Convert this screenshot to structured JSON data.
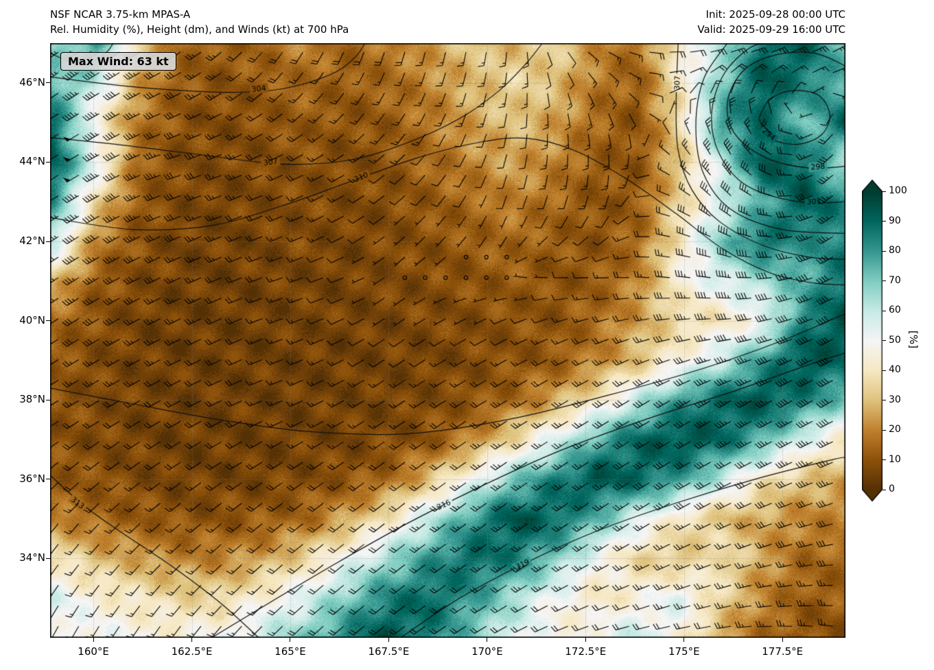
{
  "header": {
    "title_line1": "NSF NCAR 3.75-km MPAS-A",
    "title_line2": "Rel. Humidity (%), Height (dm), and Winds (kt) at 700 hPa",
    "init_label": "Init: 2025-09-28 00:00 UTC",
    "valid_label": "Valid: 2025-09-29 16:00 UTC"
  },
  "map": {
    "max_wind_label": "Max Wind: 63 kt"
  },
  "axes": {
    "lat_ticks": [
      {
        "label": "46°N",
        "value": 46
      },
      {
        "label": "44°N",
        "value": 44
      },
      {
        "label": "42°N",
        "value": 42
      },
      {
        "label": "40°N",
        "value": 40
      },
      {
        "label": "38°N",
        "value": 38
      },
      {
        "label": "36°N",
        "value": 36
      },
      {
        "label": "34°N",
        "value": 34
      }
    ],
    "lon_ticks": [
      {
        "label": "160°E",
        "value": 160
      },
      {
        "label": "162.5°E",
        "value": 162.5
      },
      {
        "label": "165°E",
        "value": 165
      },
      {
        "label": "167.5°E",
        "value": 167.5
      },
      {
        "label": "170°E",
        "value": 170
      },
      {
        "label": "172.5°E",
        "value": 172.5
      },
      {
        "label": "175°E",
        "value": 175
      },
      {
        "label": "177.5°E",
        "value": 177.5
      }
    ]
  },
  "colorbar": {
    "label": "[%]",
    "ticks": [
      0,
      10,
      20,
      30,
      40,
      50,
      60,
      70,
      80,
      90,
      100
    ],
    "stops": [
      {
        "v": 0,
        "c": "#543005"
      },
      {
        "v": 10,
        "c": "#8c510a"
      },
      {
        "v": 20,
        "c": "#bf812d"
      },
      {
        "v": 30,
        "c": "#dfc27d"
      },
      {
        "v": 40,
        "c": "#f6e8c3"
      },
      {
        "v": 50,
        "c": "#f5f5f5"
      },
      {
        "v": 60,
        "c": "#c7eae5"
      },
      {
        "v": 70,
        "c": "#80cdc1"
      },
      {
        "v": 80,
        "c": "#35978f"
      },
      {
        "v": 90,
        "c": "#01665e"
      },
      {
        "v": 100,
        "c": "#003c30"
      }
    ]
  },
  "chart_data": {
    "type": "heatmap",
    "title": "Rel. Humidity (%), Height (dm), and Winds (kt) at 700 hPa",
    "x_range": [
      158.9,
      179.1
    ],
    "y_range": [
      32.0,
      47.0
    ],
    "rh_grid": {
      "lons": [
        159.0,
        160.06,
        161.12,
        162.18,
        163.24,
        164.29,
        165.35,
        166.41,
        167.47,
        168.53,
        169.59,
        170.65,
        171.71,
        172.76,
        173.82,
        174.88,
        175.94,
        177.0,
        178.06,
        179.12
      ],
      "lats": [
        47,
        46,
        45,
        44,
        43,
        42,
        41,
        40,
        39,
        38,
        37,
        36,
        35,
        34,
        33,
        32
      ],
      "values": [
        [
          65,
          80,
          35,
          15,
          12,
          15,
          20,
          15,
          18,
          25,
          32,
          28,
          35,
          22,
          15,
          45,
          60,
          88,
          92,
          70
        ],
        [
          75,
          60,
          25,
          12,
          10,
          12,
          15,
          12,
          15,
          20,
          28,
          35,
          30,
          18,
          12,
          40,
          70,
          95,
          85,
          75
        ],
        [
          88,
          45,
          18,
          10,
          8,
          10,
          12,
          10,
          12,
          18,
          25,
          30,
          25,
          15,
          10,
          35,
          80,
          90,
          70,
          92
        ],
        [
          92,
          55,
          15,
          8,
          8,
          8,
          10,
          8,
          10,
          15,
          20,
          25,
          20,
          12,
          10,
          30,
          60,
          95,
          90,
          60
        ],
        [
          80,
          35,
          12,
          8,
          6,
          8,
          8,
          8,
          8,
          12,
          15,
          20,
          15,
          10,
          12,
          35,
          55,
          75,
          95,
          82
        ],
        [
          60,
          20,
          10,
          6,
          6,
          6,
          8,
          6,
          8,
          10,
          12,
          15,
          12,
          10,
          15,
          40,
          70,
          90,
          80,
          85
        ],
        [
          30,
          12,
          8,
          6,
          5,
          6,
          6,
          6,
          8,
          8,
          10,
          12,
          10,
          12,
          20,
          45,
          55,
          65,
          75,
          90
        ],
        [
          15,
          10,
          6,
          5,
          5,
          5,
          6,
          6,
          6,
          8,
          8,
          10,
          10,
          15,
          25,
          35,
          40,
          50,
          85,
          95
        ],
        [
          12,
          8,
          6,
          5,
          5,
          5,
          5,
          5,
          6,
          6,
          8,
          10,
          12,
          20,
          30,
          45,
          60,
          80,
          95,
          90
        ],
        [
          10,
          8,
          6,
          5,
          5,
          5,
          5,
          6,
          6,
          8,
          10,
          15,
          25,
          40,
          60,
          80,
          90,
          95,
          85,
          70
        ],
        [
          10,
          8,
          6,
          5,
          5,
          5,
          6,
          6,
          8,
          10,
          20,
          35,
          55,
          75,
          90,
          95,
          90,
          75,
          55,
          40
        ],
        [
          12,
          10,
          8,
          6,
          6,
          6,
          8,
          10,
          15,
          30,
          50,
          70,
          85,
          95,
          90,
          80,
          60,
          40,
          30,
          25
        ],
        [
          20,
          15,
          12,
          10,
          10,
          12,
          15,
          25,
          40,
          60,
          80,
          95,
          90,
          75,
          55,
          40,
          30,
          25,
          20,
          20
        ],
        [
          40,
          30,
          25,
          20,
          20,
          25,
          35,
          50,
          65,
          80,
          90,
          85,
          70,
          50,
          35,
          30,
          40,
          25,
          15,
          15
        ],
        [
          55,
          45,
          40,
          35,
          35,
          45,
          55,
          70,
          85,
          90,
          80,
          65,
          50,
          40,
          45,
          55,
          35,
          20,
          12,
          12
        ],
        [
          50,
          50,
          48,
          45,
          50,
          60,
          70,
          85,
          95,
          85,
          70,
          55,
          45,
          50,
          60,
          45,
          25,
          15,
          10,
          10
        ]
      ]
    },
    "contours": [
      {
        "value": "",
        "points": [
          [
            158.9,
            46.75
          ],
          [
            159.7,
            46.45
          ],
          [
            160.3,
            46.75
          ],
          [
            160.5,
            47.0
          ]
        ],
        "labels": []
      },
      {
        "value": "304",
        "points": [
          [
            158.9,
            46.15
          ],
          [
            160.5,
            45.95
          ],
          [
            162.0,
            45.82
          ],
          [
            163.5,
            45.76
          ],
          [
            164.8,
            45.85
          ],
          [
            166.0,
            46.2
          ],
          [
            166.6,
            46.6
          ],
          [
            166.9,
            47.0
          ]
        ],
        "labels": [
          {
            "lon": 164.2,
            "lat": 45.85,
            "rot": -6
          }
        ]
      },
      {
        "value": "307",
        "points": [
          [
            158.9,
            44.62
          ],
          [
            161.0,
            44.4
          ],
          [
            163.0,
            44.15
          ],
          [
            164.8,
            43.95
          ],
          [
            166.5,
            44.05
          ],
          [
            168.0,
            44.5
          ],
          [
            169.3,
            45.1
          ],
          [
            170.3,
            45.8
          ],
          [
            171.0,
            46.5
          ],
          [
            171.4,
            47.0
          ]
        ],
        "labels": [
          {
            "lon": 164.5,
            "lat": 44.0,
            "rot": -8
          }
        ]
      },
      {
        "value": "310",
        "points": [
          [
            158.9,
            42.6
          ],
          [
            161.0,
            42.3
          ],
          [
            163.0,
            42.4
          ],
          [
            164.8,
            42.9
          ],
          [
            166.5,
            43.5
          ],
          [
            168.2,
            44.1
          ],
          [
            169.8,
            44.5
          ],
          [
            171.0,
            44.6
          ],
          [
            172.2,
            44.3
          ],
          [
            173.5,
            43.6
          ],
          [
            174.8,
            42.7
          ],
          [
            176.0,
            41.8
          ],
          [
            177.2,
            41.2
          ],
          [
            178.3,
            40.95
          ],
          [
            179.15,
            40.9
          ]
        ],
        "labels": [
          {
            "lon": 166.8,
            "lat": 43.62,
            "rot": -22
          }
        ]
      },
      {
        "value": "307",
        "points": [
          [
            174.85,
            47.0
          ],
          [
            174.8,
            45.5
          ],
          [
            174.85,
            44.3
          ],
          [
            175.2,
            43.3
          ],
          [
            175.9,
            42.5
          ],
          [
            177.0,
            41.9
          ],
          [
            178.2,
            41.6
          ],
          [
            179.15,
            41.55
          ]
        ],
        "labels": [
          {
            "lon": 174.83,
            "lat": 46.0,
            "rot": -88
          }
        ]
      },
      {
        "value": "304",
        "points": [
          [
            179.15,
            42.2
          ],
          [
            177.5,
            42.3
          ],
          [
            176.2,
            42.8
          ],
          [
            175.5,
            43.7
          ],
          [
            175.3,
            44.9
          ],
          [
            175.5,
            46.1
          ],
          [
            176.1,
            47.0
          ]
        ],
        "labels": []
      },
      {
        "value": "301",
        "points": [
          [
            179.15,
            43.0
          ],
          [
            177.9,
            43.0
          ],
          [
            176.6,
            43.4
          ],
          [
            175.9,
            44.2
          ],
          [
            175.7,
            45.2
          ],
          [
            176.0,
            46.2
          ],
          [
            176.7,
            46.9
          ],
          [
            177.3,
            47.0
          ]
        ],
        "labels": [
          {
            "lon": 178.3,
            "lat": 43.0,
            "rot": -3
          }
        ]
      },
      {
        "value": "298",
        "points": [
          [
            179.15,
            43.9
          ],
          [
            178.2,
            43.85
          ],
          [
            177.1,
            44.1
          ],
          [
            176.3,
            44.7
          ],
          [
            176.1,
            45.5
          ],
          [
            176.5,
            46.3
          ],
          [
            177.3,
            46.7
          ],
          [
            178.3,
            46.75
          ],
          [
            179.15,
            46.4
          ]
        ],
        "labels": [
          {
            "lon": 178.4,
            "lat": 43.88,
            "rot": -5
          }
        ]
      },
      {
        "value": "294",
        "points": [
          [
            176.9,
            45.1
          ],
          [
            177.2,
            44.6
          ],
          [
            177.9,
            44.45
          ],
          [
            178.5,
            44.7
          ],
          [
            178.7,
            45.2
          ],
          [
            178.4,
            45.7
          ],
          [
            177.7,
            45.8
          ],
          [
            177.15,
            45.55
          ],
          [
            176.9,
            45.1
          ]
        ],
        "labels": [
          {
            "lon": 177.15,
            "lat": 44.7,
            "rot": 40
          }
        ]
      },
      {
        "value": "313",
        "points": [
          [
            158.9,
            38.3
          ],
          [
            161.0,
            37.9
          ],
          [
            163.2,
            37.5
          ],
          [
            165.5,
            37.2
          ],
          [
            168.0,
            37.15
          ],
          [
            170.5,
            37.5
          ],
          [
            173.0,
            38.1
          ],
          [
            175.5,
            38.8
          ],
          [
            177.5,
            39.5
          ],
          [
            179.15,
            40.2
          ]
        ],
        "labels": []
      },
      {
        "value": "313",
        "points": [
          [
            158.9,
            36.1
          ],
          [
            159.8,
            35.3
          ],
          [
            160.8,
            34.6
          ],
          [
            162.0,
            33.8
          ],
          [
            163.2,
            32.9
          ],
          [
            164.2,
            32.0
          ]
        ],
        "labels": [
          {
            "lon": 159.6,
            "lat": 35.4,
            "rot": 38
          }
        ]
      },
      {
        "value": "316",
        "points": [
          [
            163.0,
            32.0
          ],
          [
            164.5,
            32.9
          ],
          [
            166.2,
            33.9
          ],
          [
            168.0,
            34.9
          ],
          [
            169.8,
            35.8
          ],
          [
            171.8,
            36.7
          ],
          [
            174.0,
            37.5
          ],
          [
            176.2,
            38.2
          ],
          [
            178.2,
            38.9
          ],
          [
            179.15,
            39.2
          ]
        ],
        "labels": [
          {
            "lon": 168.9,
            "lat": 35.35,
            "rot": -24
          }
        ]
      },
      {
        "value": "319",
        "points": [
          [
            167.8,
            32.0
          ],
          [
            169.3,
            33.0
          ],
          [
            171.0,
            33.9
          ],
          [
            172.8,
            34.7
          ],
          [
            174.8,
            35.4
          ],
          [
            176.8,
            36.0
          ],
          [
            178.8,
            36.5
          ],
          [
            179.15,
            36.55
          ]
        ],
        "labels": [
          {
            "lon": 170.9,
            "lat": 33.85,
            "rot": -25
          }
        ]
      }
    ],
    "wind": {
      "lons": [
        159.0,
        161.9,
        164.7,
        167.6,
        170.4,
        173.3,
        176.1,
        179.1
      ],
      "lats": [
        47,
        44,
        41,
        38,
        35,
        32
      ],
      "u": [
        [
          35,
          25,
          10,
          5,
          2,
          -15,
          -30,
          -25
        ],
        [
          48,
          30,
          18,
          10,
          3,
          0,
          25,
          25
        ],
        [
          30,
          25,
          15,
          1,
          1,
          15,
          45,
          35
        ],
        [
          20,
          18,
          15,
          12,
          20,
          25,
          30,
          35
        ],
        [
          10,
          12,
          15,
          18,
          20,
          22,
          25,
          30
        ],
        [
          5,
          8,
          12,
          15,
          18,
          20,
          22,
          25
        ]
      ],
      "v": [
        [
          25,
          15,
          15,
          18,
          15,
          5,
          -5,
          -15
        ],
        [
          30,
          10,
          8,
          8,
          10,
          20,
          -40,
          30
        ],
        [
          20,
          12,
          5,
          1,
          -1,
          0,
          -5,
          20
        ],
        [
          12,
          10,
          6,
          8,
          12,
          15,
          18,
          20
        ],
        [
          12,
          10,
          12,
          14,
          15,
          15,
          12,
          8
        ],
        [
          10,
          12,
          12,
          12,
          10,
          5,
          3,
          -5
        ]
      ]
    }
  }
}
